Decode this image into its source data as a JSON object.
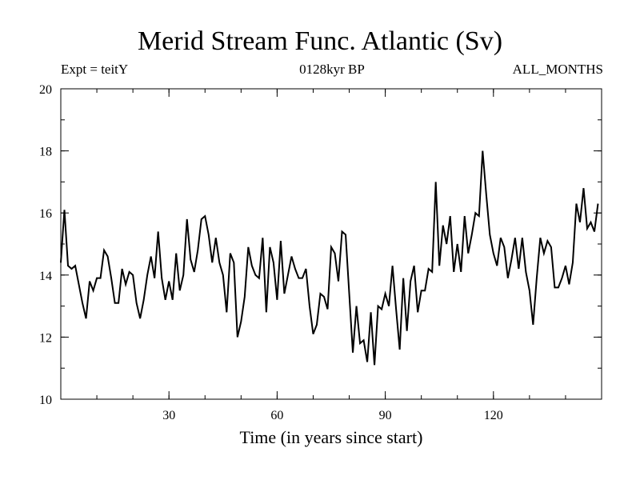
{
  "chart_data": {
    "type": "line",
    "title": "Merid Stream Func. Atlantic (Sv)",
    "subtitle_left": "Expt = teitY",
    "subtitle_center": "0128kyr BP",
    "subtitle_right": "ALL_MONTHS",
    "xlabel": "Time (in years since start)",
    "ylabel": "",
    "xlim": [
      0,
      150
    ],
    "ylim": [
      10,
      20
    ],
    "x_major_ticks": [
      30,
      60,
      90,
      120
    ],
    "x_minor_step": 10,
    "y_major_ticks": [
      10,
      12,
      14,
      16,
      18,
      20
    ],
    "y_minor_step": 1,
    "grid": false,
    "series": [
      {
        "name": "Merid Stream Func. Atlantic",
        "x_start": 0,
        "x_step": 1,
        "values": [
          14.4,
          16.1,
          14.3,
          14.2,
          14.3,
          13.7,
          13.1,
          12.6,
          13.8,
          13.5,
          13.9,
          13.9,
          14.8,
          14.6,
          13.9,
          13.1,
          13.1,
          14.2,
          13.7,
          14.1,
          14.0,
          13.1,
          12.6,
          13.2,
          14.0,
          14.6,
          13.9,
          15.4,
          13.9,
          13.2,
          13.8,
          13.2,
          14.7,
          13.5,
          14.0,
          15.8,
          14.5,
          14.1,
          14.8,
          15.8,
          15.9,
          15.3,
          14.4,
          15.2,
          14.4,
          14.0,
          12.8,
          14.7,
          14.4,
          12.0,
          12.5,
          13.3,
          14.9,
          14.3,
          14.0,
          13.9,
          15.2,
          12.8,
          14.9,
          14.4,
          13.2,
          15.1,
          13.4,
          14.0,
          14.6,
          14.2,
          13.9,
          13.9,
          14.2,
          13.0,
          12.1,
          12.4,
          13.4,
          13.3,
          12.9,
          14.9,
          14.7,
          13.8,
          15.4,
          15.3,
          13.4,
          11.5,
          13.0,
          11.8,
          11.9,
          11.2,
          12.8,
          11.1,
          13.0,
          12.9,
          13.4,
          13.0,
          14.3,
          12.9,
          11.6,
          13.9,
          12.2,
          13.8,
          14.3,
          12.8,
          13.5,
          13.5,
          14.2,
          14.1,
          17.0,
          14.3,
          15.6,
          15.0,
          15.9,
          14.1,
          15.0,
          14.1,
          15.9,
          14.7,
          15.3,
          16.0,
          15.9,
          18.0,
          16.6,
          15.3,
          14.7,
          14.3,
          15.2,
          14.9,
          13.9,
          14.5,
          15.2,
          14.2,
          15.2,
          14.1,
          13.5,
          12.4,
          13.9,
          15.2,
          14.7,
          15.1,
          14.9,
          13.6,
          13.6,
          13.9,
          14.3,
          13.7,
          14.4,
          16.3,
          15.7,
          16.8,
          15.5,
          15.7,
          15.4,
          16.3
        ]
      }
    ]
  }
}
